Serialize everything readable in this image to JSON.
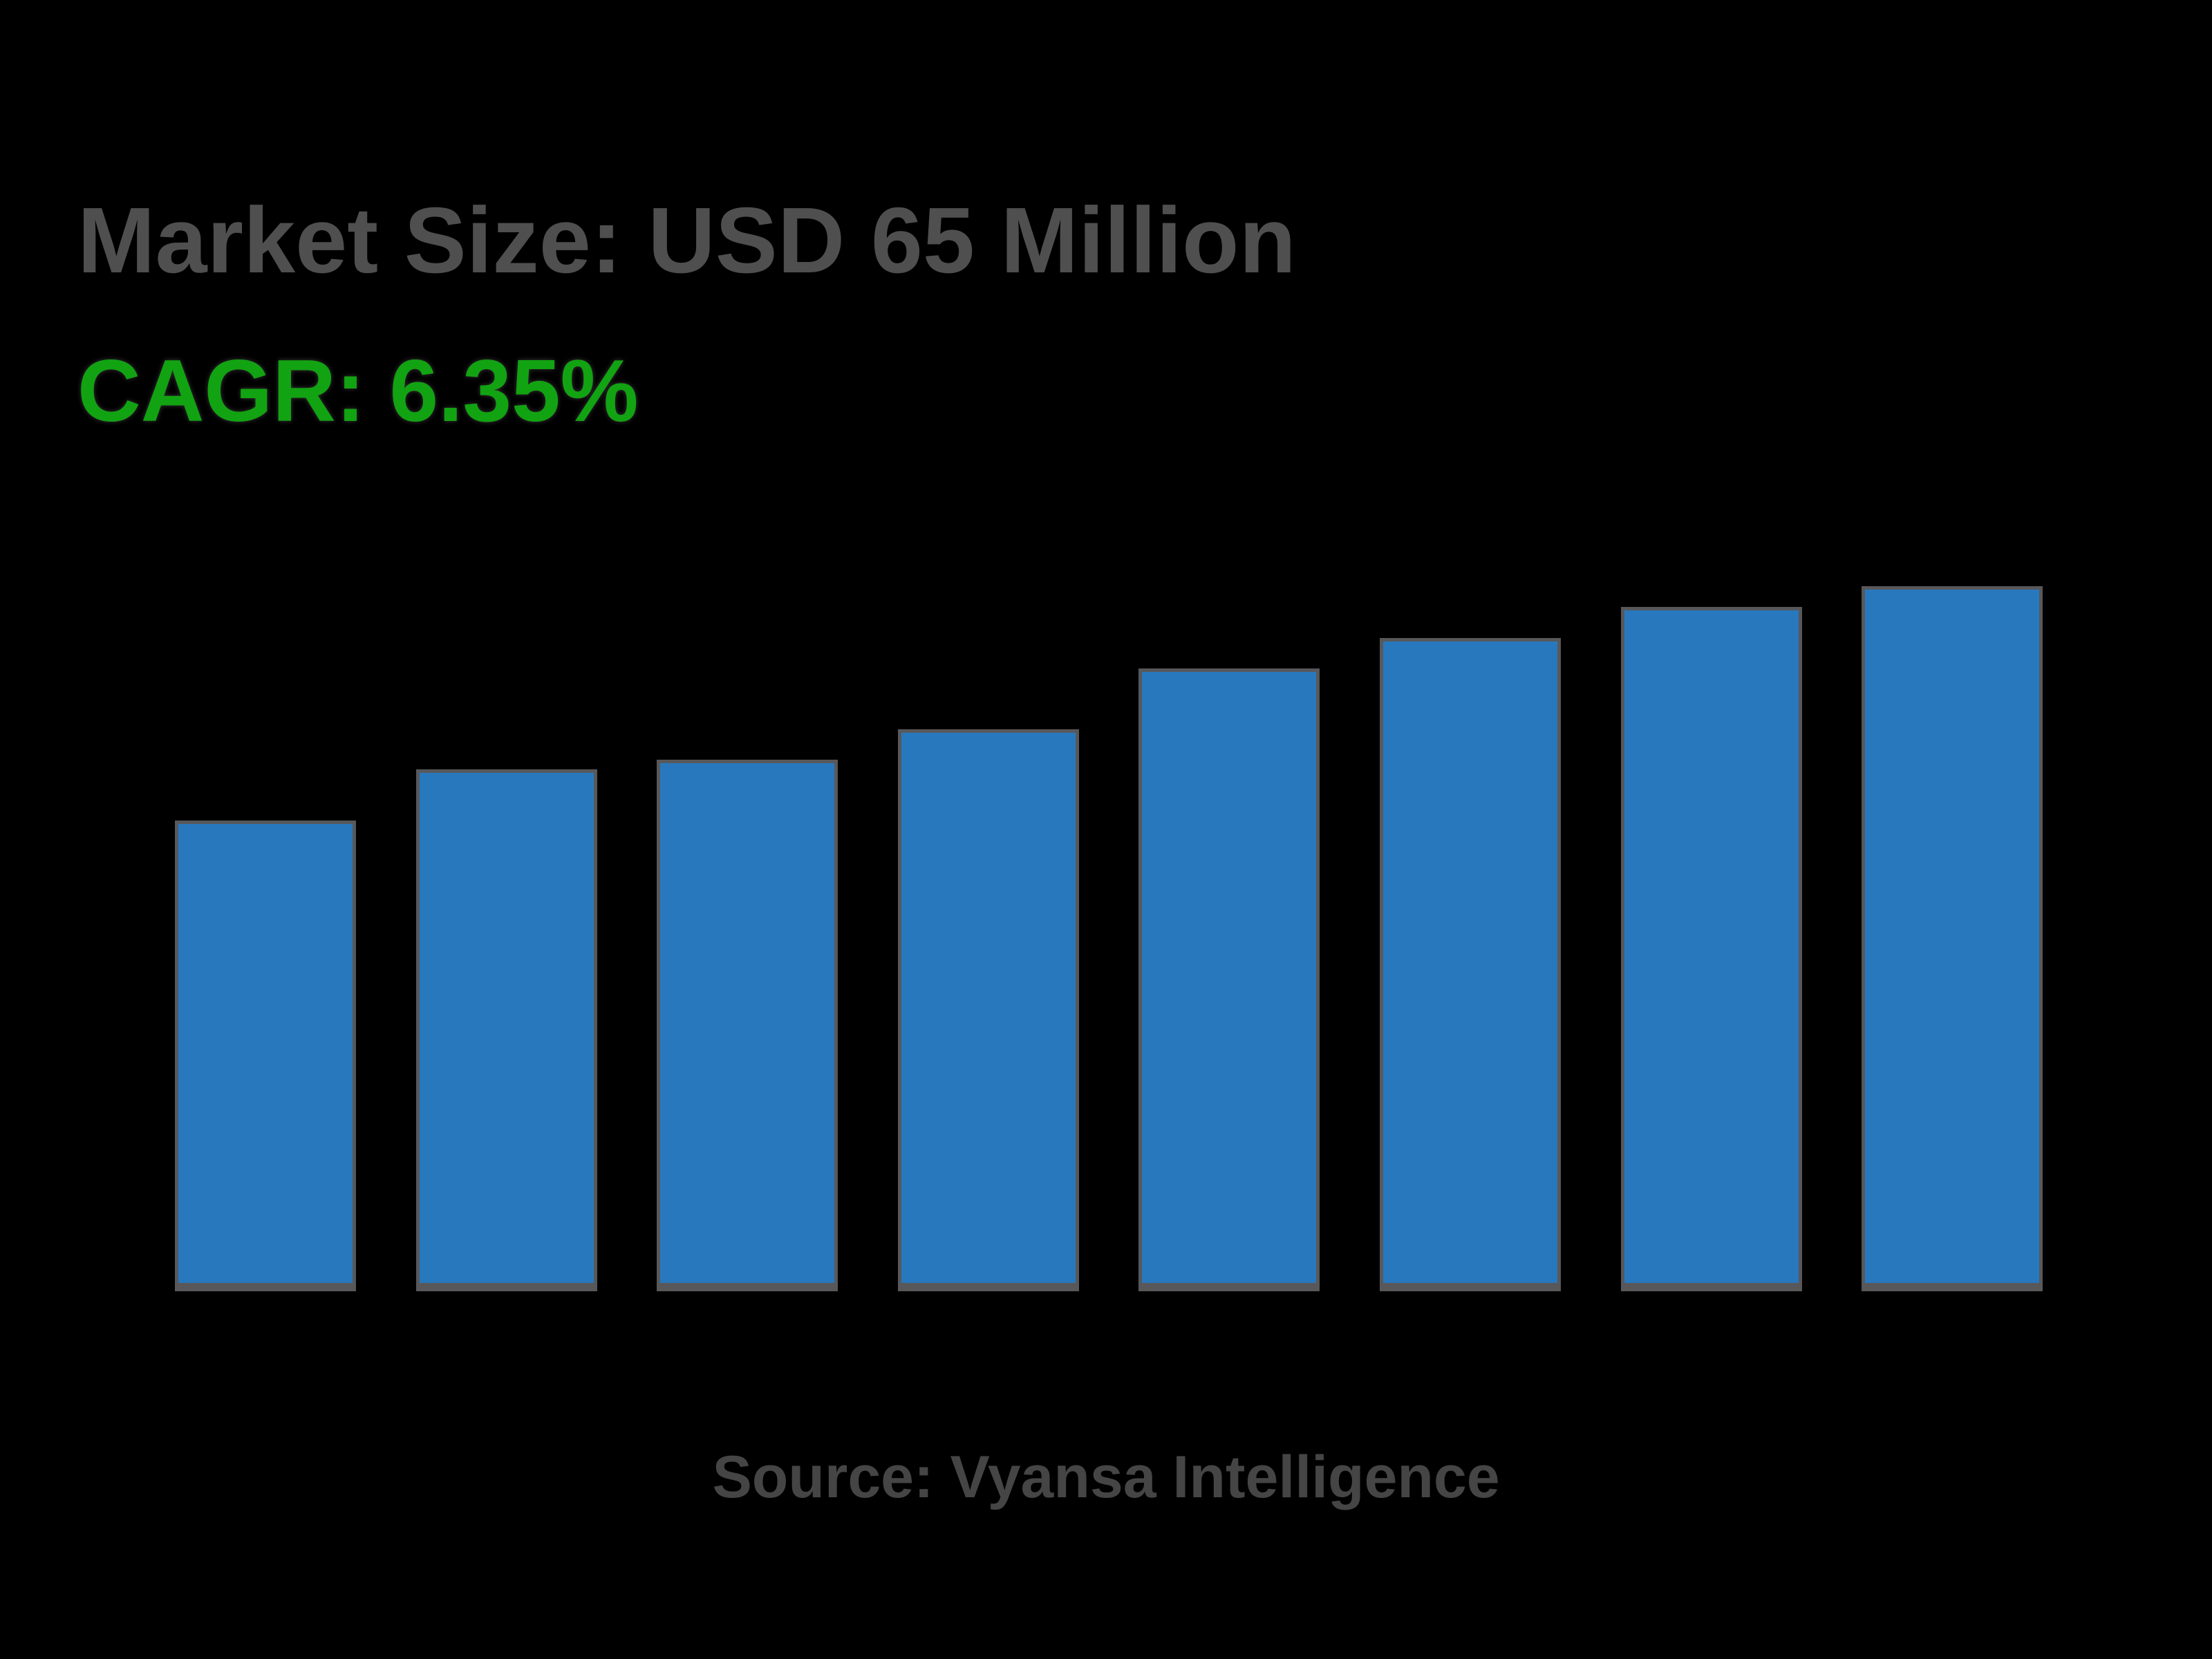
{
  "header": {
    "title": "Market Size: USD 65 Million",
    "cagr_label": "CAGR: 6.35%"
  },
  "footer": {
    "source_label": "Source: Vyansa Intelligence"
  },
  "colors": {
    "background": "#000000",
    "title_text": "#4F4F4F",
    "cagr_text": "#12A312",
    "source_text": "#454545",
    "bar_fill": "#2878BE",
    "bar_border": "#58585A"
  },
  "chart_data": {
    "type": "bar",
    "title": "Market Size: USD 65 Million",
    "subtitle": "CAGR: 6.35%",
    "annotation": "Source: Vyansa Intelligence",
    "categories": [
      "",
      "",
      "",
      "",
      "",
      "",
      "",
      ""
    ],
    "values": [
      43.4,
      48.1,
      49.0,
      51.8,
      57.4,
      60.2,
      63.1,
      65.0
    ],
    "unit": "USD Million",
    "ylim": [
      0,
      65
    ],
    "xlabel": "",
    "ylabel": "",
    "gridlines": false,
    "legend": false,
    "axis_tick_labels_visible": false,
    "bar_color": "#2878BE",
    "bar_border_color": "#58585A"
  }
}
